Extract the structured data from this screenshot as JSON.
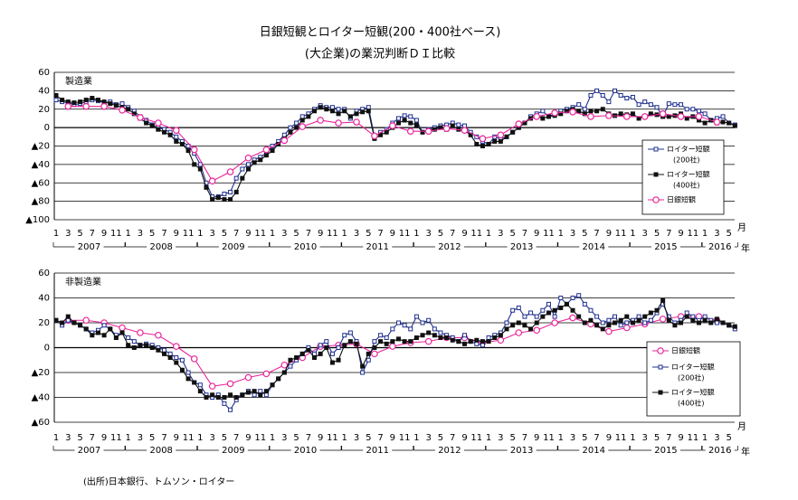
{
  "header": {
    "title": "日銀短観とロイター短観(200・400社ベース)",
    "subtitle": "(大企業)の業況判断ＤＩ比較"
  },
  "source": "(出所)日本銀行、トムソン・ロイター",
  "chart_data": [
    {
      "type": "line",
      "panel_label": "製造業",
      "x_unit_month": "月",
      "x_unit_year": "年",
      "grid": true,
      "legend": "right",
      "categories": [
        "1",
        null,
        "3",
        null,
        "5",
        null,
        "7",
        null,
        "9",
        null,
        "11",
        null,
        "1",
        null,
        "3",
        null,
        "5",
        null,
        "7",
        null,
        "9",
        null,
        "11",
        null,
        "1",
        null,
        "3",
        null,
        "5",
        null,
        "7",
        null,
        "9",
        null,
        "11",
        null,
        "1",
        null,
        "3",
        null,
        "5",
        null,
        "7",
        null,
        "9",
        null,
        "11",
        null,
        "1",
        null,
        "3",
        null,
        "5",
        null,
        "7",
        null,
        "9",
        null,
        "11",
        null,
        "1",
        null,
        "3",
        null,
        "5",
        null,
        "7",
        null,
        "9",
        null,
        "11",
        null,
        "1",
        null,
        "3",
        null,
        "5",
        null,
        "7",
        null,
        "9",
        null,
        "11",
        null,
        "1",
        null,
        "3",
        null,
        "5",
        null,
        "7",
        null,
        "9",
        null,
        "11",
        null,
        "1",
        null,
        "3",
        null,
        "5",
        null,
        "7",
        null,
        "9",
        null,
        "11",
        null,
        "1",
        null,
        "3",
        null,
        "5",
        null
      ],
      "years": [
        "2007",
        "2008",
        "2009",
        "2010",
        "2011",
        "2012",
        "2013",
        "2014",
        "2015",
        "2016"
      ],
      "ylim": [
        -100,
        60
      ],
      "yticks": [
        60,
        40,
        20,
        0,
        {
          "value": -20,
          "label": "▲20"
        },
        {
          "value": -40,
          "label": "▲40"
        },
        {
          "value": -60,
          "label": "▲60"
        },
        {
          "value": -80,
          "label": "▲80"
        },
        {
          "value": -100,
          "label": "▲100"
        }
      ],
      "series": [
        {
          "name": "ロイター短観",
          "legend_note": "(200社)",
          "color": "#1f2f8f",
          "marker": "square-open",
          "span_gaps": false,
          "values": [
            30,
            28,
            27,
            25,
            26,
            28,
            30,
            29,
            27,
            28,
            25,
            26,
            22,
            18,
            12,
            8,
            3,
            0,
            -2,
            -5,
            -10,
            -15,
            -20,
            -28,
            -40,
            -60,
            -75,
            -75,
            -72,
            -70,
            -55,
            -45,
            -40,
            -35,
            -32,
            -28,
            -20,
            -15,
            -8,
            0,
            5,
            12,
            15,
            20,
            24,
            22,
            22,
            20,
            20,
            10,
            18,
            20,
            22,
            -10,
            -5,
            -2,
            5,
            10,
            13,
            12,
            8,
            -5,
            -2,
            0,
            2,
            3,
            5,
            3,
            2,
            -5,
            -10,
            -15,
            -18,
            -10,
            -12,
            -10,
            -5,
            0,
            5,
            12,
            15,
            18,
            12,
            15,
            18,
            20,
            22,
            25,
            20,
            35,
            40,
            35,
            28,
            40,
            35,
            32,
            33,
            25,
            28,
            25,
            22,
            12,
            26,
            25,
            25,
            20,
            20,
            18,
            15,
            8,
            10,
            12,
            5,
            3
          ]
        },
        {
          "name": "ロイター短観",
          "legend_note": "(400社)",
          "color": "#111111",
          "marker": "square",
          "span_gaps": false,
          "values": [
            35,
            30,
            28,
            27,
            28,
            30,
            32,
            30,
            28,
            26,
            24,
            22,
            20,
            15,
            10,
            5,
            2,
            -2,
            -5,
            -8,
            -15,
            -18,
            -25,
            -40,
            -45,
            -65,
            -78,
            -76,
            -78,
            -78,
            -70,
            -55,
            -45,
            -38,
            -35,
            -30,
            -25,
            -18,
            -12,
            -5,
            0,
            8,
            12,
            18,
            22,
            20,
            18,
            15,
            18,
            12,
            15,
            17,
            18,
            -12,
            -8,
            -5,
            0,
            5,
            8,
            5,
            3,
            -5,
            -3,
            -2,
            0,
            -2,
            2,
            -2,
            -3,
            -8,
            -18,
            -20,
            -18,
            -15,
            -15,
            -10,
            -5,
            0,
            5,
            10,
            12,
            10,
            12,
            13,
            15,
            18,
            20,
            18,
            15,
            18,
            18,
            20,
            15,
            13,
            15,
            14,
            15,
            10,
            12,
            15,
            14,
            12,
            12,
            13,
            15,
            10,
            12,
            8,
            5,
            8,
            5,
            6,
            5,
            2
          ]
        },
        {
          "name": "日銀短観",
          "color": "#e8259a",
          "marker": "circle",
          "span_gaps": true,
          "values": [
            null,
            null,
            23,
            null,
            null,
            23,
            null,
            null,
            23,
            null,
            null,
            19,
            null,
            null,
            11,
            null,
            null,
            5,
            null,
            null,
            -3,
            null,
            null,
            -24,
            null,
            null,
            -58,
            null,
            null,
            -48,
            null,
            null,
            -33,
            null,
            null,
            -24,
            null,
            null,
            -14,
            null,
            null,
            1,
            null,
            null,
            8,
            null,
            null,
            5,
            null,
            null,
            6,
            null,
            null,
            -9,
            null,
            null,
            2,
            null,
            null,
            -4,
            null,
            null,
            -4,
            null,
            null,
            -1,
            null,
            null,
            -3,
            null,
            null,
            -12,
            null,
            null,
            -8,
            null,
            null,
            4,
            null,
            null,
            12,
            null,
            null,
            16,
            null,
            null,
            17,
            null,
            null,
            12,
            null,
            null,
            13,
            null,
            null,
            12,
            null,
            null,
            12,
            null,
            null,
            15,
            null,
            null,
            12,
            null,
            null,
            12,
            null,
            null,
            6,
            null,
            null,
            null
          ]
        }
      ]
    },
    {
      "type": "line",
      "panel_label": "非製造業",
      "x_unit_month": "月",
      "x_unit_year": "年",
      "grid": true,
      "legend": "right",
      "categories": [
        "1",
        null,
        "3",
        null,
        "5",
        null,
        "7",
        null,
        "9",
        null,
        "11",
        null,
        "1",
        null,
        "3",
        null,
        "5",
        null,
        "7",
        null,
        "9",
        null,
        "11",
        null,
        "1",
        null,
        "3",
        null,
        "5",
        null,
        "7",
        null,
        "9",
        null,
        "11",
        null,
        "1",
        null,
        "3",
        null,
        "5",
        null,
        "7",
        null,
        "9",
        null,
        "11",
        null,
        "1",
        null,
        "3",
        null,
        "5",
        null,
        "7",
        null,
        "9",
        null,
        "11",
        null,
        "1",
        null,
        "3",
        null,
        "5",
        null,
        "7",
        null,
        "9",
        null,
        "11",
        null,
        "1",
        null,
        "3",
        null,
        "5",
        null,
        "7",
        null,
        "9",
        null,
        "11",
        null,
        "1",
        null,
        "3",
        null,
        "5",
        null,
        "7",
        null,
        "9",
        null,
        "11",
        null,
        "1",
        null,
        "3",
        null,
        "5",
        null,
        "7",
        null,
        "9",
        null,
        "11",
        null,
        "1",
        null,
        "3",
        null,
        "5",
        null
      ],
      "years": [
        "2007",
        "2008",
        "2009",
        "2010",
        "2011",
        "2012",
        "2013",
        "2014",
        "2015",
        "2016"
      ],
      "ylim": [
        -60,
        60
      ],
      "yticks": [
        60,
        40,
        20,
        0,
        {
          "value": -20,
          "label": "▲20"
        },
        {
          "value": -40,
          "label": "▲40"
        },
        {
          "value": -60,
          "label": "▲60"
        }
      ],
      "series": [
        {
          "name": "日銀短観",
          "color": "#e8259a",
          "marker": "circle",
          "span_gaps": true,
          "values": [
            null,
            null,
            22,
            null,
            null,
            22,
            null,
            null,
            20,
            null,
            null,
            16,
            null,
            null,
            12,
            null,
            null,
            10,
            null,
            null,
            1,
            null,
            null,
            -9,
            null,
            null,
            -31,
            null,
            null,
            -29,
            null,
            null,
            -24,
            null,
            null,
            -21,
            null,
            null,
            -14,
            null,
            null,
            -8,
            null,
            null,
            1,
            null,
            null,
            2,
            null,
            null,
            3,
            null,
            null,
            -5,
            null,
            null,
            1,
            null,
            null,
            4,
            null,
            null,
            5,
            null,
            null,
            8,
            null,
            null,
            8,
            null,
            null,
            4,
            null,
            null,
            6,
            null,
            null,
            12,
            null,
            null,
            14,
            null,
            null,
            20,
            null,
            null,
            24,
            null,
            null,
            19,
            null,
            null,
            13,
            null,
            null,
            16,
            null,
            null,
            19,
            null,
            null,
            23,
            null,
            null,
            25,
            null,
            null,
            25,
            null,
            null,
            22,
            null,
            null,
            null
          ]
        },
        {
          "name": "ロイター短観",
          "legend_note": "(200社)",
          "color": "#1f2f8f",
          "marker": "square-open",
          "span_gaps": false,
          "values": [
            22,
            18,
            22,
            20,
            18,
            15,
            12,
            14,
            18,
            15,
            10,
            12,
            8,
            5,
            2,
            3,
            2,
            0,
            -2,
            -5,
            -8,
            -10,
            -20,
            -28,
            -30,
            -38,
            -40,
            -38,
            -45,
            -50,
            -42,
            -38,
            -35,
            -38,
            -35,
            -38,
            -30,
            -25,
            -20,
            -15,
            -10,
            -5,
            0,
            -5,
            2,
            5,
            -5,
            0,
            10,
            12,
            5,
            -20,
            -10,
            5,
            10,
            8,
            15,
            20,
            18,
            15,
            25,
            20,
            22,
            15,
            12,
            10,
            8,
            5,
            10,
            5,
            3,
            2,
            8,
            10,
            12,
            20,
            30,
            32,
            25,
            28,
            25,
            30,
            35,
            25,
            40,
            35,
            40,
            42,
            35,
            30,
            25,
            20,
            22,
            25,
            18,
            20,
            22,
            25,
            20,
            22,
            28,
            35,
            25,
            20,
            22,
            28,
            25,
            22,
            25,
            22,
            20,
            20,
            18,
            15
          ]
        },
        {
          "name": "ロイター短観",
          "legend_note": "(400社)",
          "color": "#111111",
          "marker": "square",
          "span_gaps": false,
          "values": [
            22,
            20,
            25,
            20,
            18,
            15,
            10,
            12,
            10,
            15,
            8,
            12,
            2,
            0,
            2,
            2,
            0,
            -2,
            -5,
            -8,
            -12,
            -18,
            -25,
            -28,
            -35,
            -40,
            -38,
            -40,
            -40,
            -38,
            -40,
            -38,
            -36,
            -35,
            -38,
            -35,
            -30,
            -25,
            -20,
            -10,
            -8,
            -5,
            -2,
            -8,
            -5,
            0,
            -12,
            -10,
            2,
            5,
            3,
            -15,
            -5,
            0,
            5,
            3,
            5,
            7,
            5,
            5,
            8,
            10,
            12,
            10,
            8,
            8,
            6,
            5,
            3,
            5,
            6,
            5,
            5,
            8,
            10,
            15,
            18,
            20,
            18,
            15,
            20,
            25,
            28,
            30,
            32,
            35,
            30,
            25,
            20,
            22,
            18,
            15,
            18,
            20,
            22,
            25,
            20,
            22,
            25,
            28,
            30,
            38,
            22,
            18,
            20,
            25,
            22,
            20,
            22,
            20,
            23,
            20,
            18,
            17
          ]
        }
      ]
    }
  ]
}
